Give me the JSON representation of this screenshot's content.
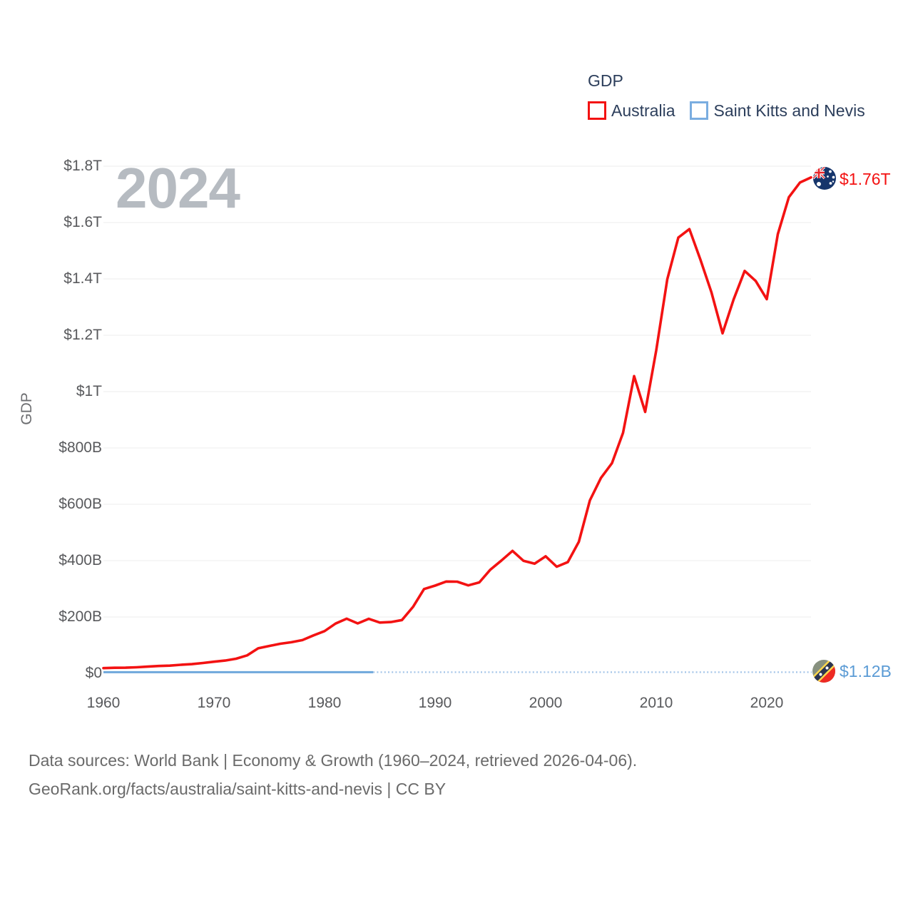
{
  "page": {
    "background": "#ffffff"
  },
  "legend": {
    "title": "GDP",
    "items": [
      {
        "label": "Australia",
        "color": "#f31212"
      },
      {
        "label": "Saint Kitts and Nevis",
        "color": "#7aade0"
      }
    ]
  },
  "watermark": "2024",
  "axis": {
    "y_title": "GDP",
    "y_ticks": [
      {
        "label": "$1.8T",
        "value": 1800
      },
      {
        "label": "$1.6T",
        "value": 1600
      },
      {
        "label": "$1.4T",
        "value": 1400
      },
      {
        "label": "$1.2T",
        "value": 1200
      },
      {
        "label": "$1T",
        "value": 1000
      },
      {
        "label": "$800B",
        "value": 800
      },
      {
        "label": "$600B",
        "value": 600
      },
      {
        "label": "$400B",
        "value": 400
      },
      {
        "label": "$200B",
        "value": 200
      },
      {
        "label": "$0",
        "value": 0
      }
    ],
    "x_ticks": [
      {
        "label": "1960",
        "value": 1960
      },
      {
        "label": "1970",
        "value": 1970
      },
      {
        "label": "1980",
        "value": 1980
      },
      {
        "label": "1990",
        "value": 1990
      },
      {
        "label": "2000",
        "value": 2000
      },
      {
        "label": "2010",
        "value": 2010
      },
      {
        "label": "2020",
        "value": 2020
      }
    ]
  },
  "end_labels": {
    "australia": {
      "text": "$1.76T",
      "color": "#f31212"
    },
    "saint_kitts": {
      "text": "$1.12B",
      "color": "#5b9bd5"
    }
  },
  "footer": {
    "line1": "Data sources: World Bank | Economy & Growth (1960–2024, retrieved 2026-04-06).",
    "line2": "GeoRank.org/facts/australia/saint-kitts-and-nevis | CC BY"
  },
  "chart_data": {
    "type": "line",
    "title": "GDP",
    "ylabel": "GDP",
    "unit": "USD billions (current US$)",
    "xlim": [
      1960,
      2024
    ],
    "ylim": [
      0,
      1800
    ],
    "grid": "horizontal",
    "legend_position": "top-right",
    "x": [
      1960,
      1961,
      1962,
      1963,
      1964,
      1965,
      1966,
      1967,
      1968,
      1969,
      1970,
      1971,
      1972,
      1973,
      1974,
      1975,
      1976,
      1977,
      1978,
      1979,
      1980,
      1981,
      1982,
      1983,
      1984,
      1985,
      1986,
      1987,
      1988,
      1989,
      1990,
      1991,
      1992,
      1993,
      1994,
      1995,
      1996,
      1997,
      1998,
      1999,
      2000,
      2001,
      2002,
      2003,
      2004,
      2005,
      2006,
      2007,
      2008,
      2009,
      2010,
      2011,
      2012,
      2013,
      2014,
      2015,
      2016,
      2017,
      2018,
      2019,
      2020,
      2021,
      2022,
      2023,
      2024
    ],
    "series": [
      {
        "name": "Australia",
        "color": "#f31212",
        "end_label": "$1.76T",
        "values": [
          18.6,
          19.7,
          19.9,
          21.5,
          23.8,
          26.0,
          27.3,
          30.4,
          32.7,
          36.6,
          41.3,
          45.2,
          52.0,
          63.7,
          88.9,
          97.2,
          105.0,
          110.4,
          118.1,
          134.7,
          149.9,
          176.6,
          193.8,
          177.2,
          193.5,
          180.2,
          182.0,
          189.1,
          235.8,
          299.3,
          311.4,
          325.9,
          325.4,
          312.1,
          322.9,
          368.1,
          400.4,
          434.7,
          399.2,
          389.2,
          415.4,
          378.5,
          394.6,
          466.8,
          613.8,
          693.4,
          746.2,
          853.8,
          1055.0,
          927.9,
          1146.0,
          1398.6,
          1546.5,
          1576.6,
          1468.0,
          1351.7,
          1206.9,
          1327.0,
          1428.3,
          1392.7,
          1328.0,
          1559.0,
          1690.0,
          1742.0,
          1760.0
        ]
      },
      {
        "name": "Saint Kitts and Nevis",
        "color": "#6fa8dc",
        "end_label": "$1.12B",
        "flat_near_zero": true,
        "value_2024": 1.12,
        "line_style": "solid from 1960 to ~1984, fine-dotted from ~1984 to 2024"
      }
    ]
  }
}
